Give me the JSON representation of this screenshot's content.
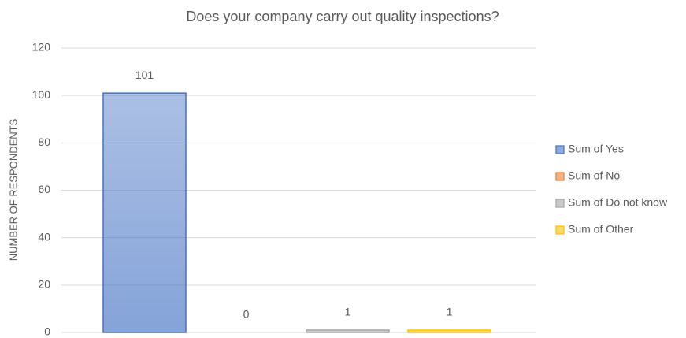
{
  "chart_data": {
    "type": "bar",
    "title": "Does your company carry out quality inspections?",
    "y_label": "NUMBER OF RESPONDENTS",
    "series": [
      {
        "name": "Sum of Yes",
        "color": "#4472c4",
        "values": [
          101
        ]
      },
      {
        "name": "Sum of No",
        "color": "#ed7d31",
        "values": [
          0
        ]
      },
      {
        "name": "Sum of Do not know",
        "color": "#a5a5a5",
        "values": [
          1
        ]
      },
      {
        "name": "Sum of Other",
        "color": "#ffc000",
        "values": [
          1
        ]
      }
    ],
    "ylim": [
      0,
      120
    ],
    "yticks": [
      0,
      20,
      40,
      60,
      80,
      100,
      120
    ],
    "grid": true,
    "legend": "right"
  }
}
